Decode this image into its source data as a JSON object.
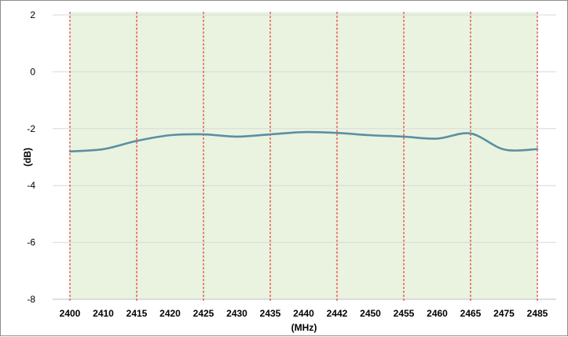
{
  "chart_data": {
    "type": "line",
    "title": "",
    "xlabel": "(MHz)",
    "ylabel": "(dB)",
    "ylim": [
      -8,
      2
    ],
    "yticks": [
      2,
      0,
      -2,
      -4,
      -6,
      -8
    ],
    "grid": "horizontal",
    "categories": [
      "2400",
      "2410",
      "2415",
      "2420",
      "2425",
      "2430",
      "2435",
      "2440",
      "2442",
      "2450",
      "2455",
      "2460",
      "2465",
      "2475",
      "2485"
    ],
    "series": [
      {
        "values": [
          -2.8,
          -2.72,
          -2.43,
          -2.23,
          -2.2,
          -2.28,
          -2.2,
          -2.12,
          -2.15,
          -2.23,
          -2.28,
          -2.35,
          -2.17,
          -2.73,
          -2.72
        ]
      }
    ],
    "marker_lines": [
      "2400",
      "2415",
      "2425",
      "2435",
      "2442",
      "2455",
      "2465",
      "2485"
    ],
    "colors": {
      "line": "#5b8fa3",
      "band_fill": "#e9f3df",
      "marker": "#e41a1c",
      "grid": "#d9d9d9"
    }
  }
}
